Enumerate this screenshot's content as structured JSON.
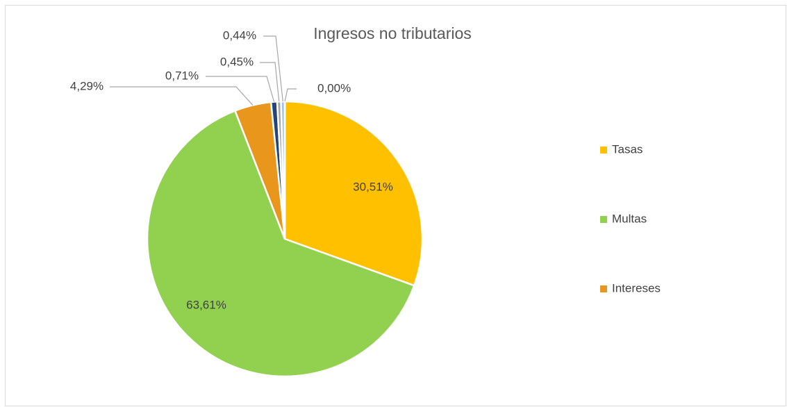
{
  "chart_data": {
    "type": "pie",
    "title": "Ingresos no tributarios",
    "categories": [
      "Tasas",
      "Multas",
      "Intereses",
      null,
      null,
      null,
      null
    ],
    "values": [
      30.51,
      63.61,
      4.29,
      0.71,
      0.45,
      0.44,
      0.0
    ],
    "value_labels": [
      "30,51%",
      "63,61%",
      "4,29%",
      "0,71%",
      "0,45%",
      "0,44%",
      "0,00%"
    ],
    "colors": [
      "#ffc000",
      "#92d050",
      "#e8961c",
      "#264478",
      "#a5a5a5",
      "#9dc3e6",
      "#4472c4"
    ],
    "legend": "right"
  }
}
